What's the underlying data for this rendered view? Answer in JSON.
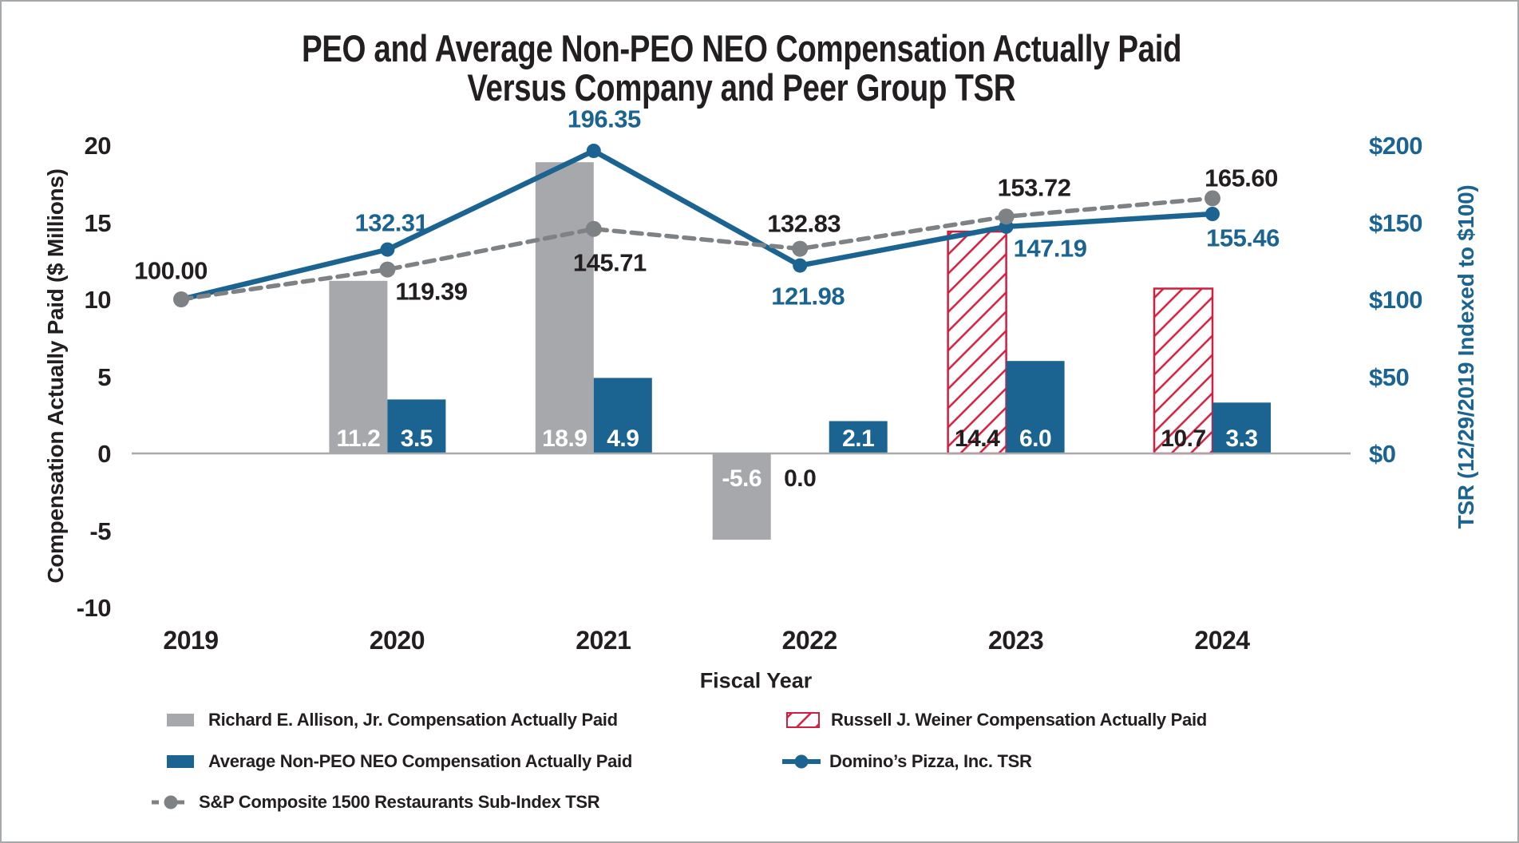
{
  "title": {
    "line1": "PEO and Average Non-PEO NEO Compensation Actually Paid",
    "line2": "Versus Company and Peer Group TSR"
  },
  "axis_left": {
    "title": "Compensation Actually Paid ($ Millions)",
    "ticks": [
      "20",
      "15",
      "10",
      "5",
      "0",
      "-5",
      "-10"
    ],
    "tick_values": [
      20,
      15,
      10,
      5,
      0,
      -5,
      -10
    ]
  },
  "axis_right": {
    "title": "TSR (12/29/2019 Indexed to $100)",
    "ticks": [
      "$200",
      "$150",
      "$100",
      "$50",
      "$0"
    ],
    "tick_values": [
      200,
      150,
      100,
      50,
      0
    ]
  },
  "axis_x": {
    "title": "Fiscal Year",
    "categories": [
      "2019",
      "2020",
      "2021",
      "2022",
      "2023",
      "2024"
    ]
  },
  "chart_data": {
    "type": "combo-bar-line",
    "categories": [
      "2019",
      "2020",
      "2021",
      "2022",
      "2023",
      "2024"
    ],
    "ylim_left": [
      -10,
      20
    ],
    "ylim_right": [
      0,
      200
    ],
    "grid": false,
    "legend_position": "bottom",
    "series": [
      {
        "name": "Richard E. Allison, Jr. Compensation Actually Paid",
        "type": "bar",
        "axis": "left",
        "color": "#a6a8ab",
        "pattern": "solid",
        "label_color": "#ffffff",
        "values": [
          null,
          11.2,
          18.9,
          -5.6,
          null,
          null
        ],
        "value_labels": [
          "",
          "11.2",
          "18.9",
          "-5.6",
          "",
          ""
        ]
      },
      {
        "name": "Russell J. Weiner Compensation Actually Paid",
        "type": "bar",
        "axis": "left",
        "color": "#d01f3f",
        "pattern": "diagonal-hatch",
        "label_color": "#231f20",
        "values": [
          null,
          null,
          null,
          0.0,
          14.4,
          10.7
        ],
        "value_labels": [
          "",
          "",
          "",
          "0.0",
          "14.4",
          "10.7"
        ]
      },
      {
        "name": "Average Non-PEO NEO Compensation Actually Paid",
        "type": "bar",
        "axis": "left",
        "color": "#1b6492",
        "pattern": "solid",
        "label_color": "#ffffff",
        "values": [
          null,
          3.5,
          4.9,
          2.1,
          6.0,
          3.3
        ],
        "value_labels": [
          "",
          "3.5",
          "4.9",
          "2.1",
          "6.0",
          "3.3"
        ]
      },
      {
        "name": "Domino’s Pizza, Inc. TSR",
        "type": "line",
        "axis": "right",
        "color": "#1b6492",
        "dash": "solid",
        "label_color": "#1b6492",
        "values": [
          100.0,
          132.31,
          196.35,
          121.98,
          147.19,
          155.46
        ],
        "point_labels": [
          "",
          "132.31",
          "196.35",
          "121.98",
          "147.19",
          "155.46"
        ]
      },
      {
        "name": "S&P Composite 1500 Restaurants Sub-Index TSR",
        "type": "line",
        "axis": "right",
        "color": "#7f8285",
        "dash": "dashed",
        "label_color": "#231f20",
        "values": [
          100.0,
          119.39,
          145.71,
          132.83,
          153.72,
          165.6
        ],
        "point_labels": [
          "100.00",
          "119.39",
          "145.71",
          "132.83",
          "153.72",
          "165.60"
        ]
      }
    ]
  },
  "legend": {
    "items": [
      {
        "label": "Richard E. Allison, Jr. Compensation Actually Paid",
        "swatch": "gray-solid-bar",
        "color": "#a6a8ab"
      },
      {
        "label": "Russell J. Weiner Compensation Actually Paid",
        "swatch": "red-hatched-bar",
        "color": "#d01f3f"
      },
      {
        "label": "Average Non-PEO NEO Compensation Actually Paid",
        "swatch": "blue-solid-bar",
        "color": "#1b6492"
      },
      {
        "label": "Domino’s Pizza, Inc. TSR",
        "swatch": "blue-line-marker",
        "color": "#1b6492"
      },
      {
        "label": "S&P Composite 1500 Restaurants Sub-Index TSR",
        "swatch": "gray-dashed-line-marker",
        "color": "#7f8285"
      }
    ]
  },
  "colors": {
    "text": "#231f20",
    "blue": "#1b6492",
    "bar_gray": "#a6a8ab",
    "line_gray": "#7f8285",
    "red": "#d01f3f",
    "axis_line": "#a7a9ab"
  }
}
